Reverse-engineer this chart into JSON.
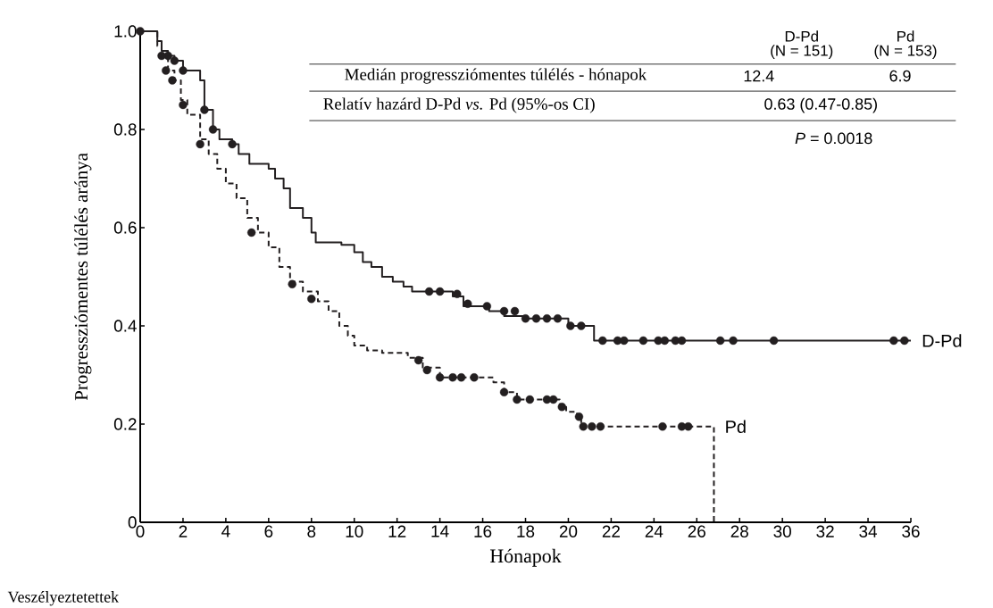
{
  "chart_data": {
    "type": "step",
    "xlabel": "Hónapok",
    "ylabel": "Progressziómentes túlélés aránya",
    "xlim": [
      0,
      36
    ],
    "xticks": [
      0,
      2,
      4,
      6,
      8,
      10,
      12,
      14,
      16,
      18,
      20,
      22,
      24,
      26,
      28,
      30,
      32,
      34,
      36
    ],
    "ylim": [
      0,
      1
    ],
    "yticks": [
      0,
      0.2,
      0.4,
      0.6,
      0.8,
      {
        "value": 1,
        "label": "1.0"
      }
    ],
    "grid": false,
    "series": [
      {
        "name": "D-Pd",
        "color": "#231f20",
        "line_style": "solid",
        "x": [
          0,
          0.8,
          1.0,
          1.3,
          1.6,
          2.0,
          2.8,
          3.0,
          3.4,
          3.7,
          4.3,
          4.6,
          5.1,
          6.0,
          6.3,
          6.7,
          7.0,
          7.6,
          8.0,
          8.2,
          9.4,
          10.0,
          10.4,
          10.8,
          11.3,
          11.8,
          12.3,
          12.7,
          14.6,
          15.1,
          16.3,
          17.0,
          18.0,
          20.0,
          21.2,
          36
        ],
        "values": [
          1.0,
          0.98,
          0.96,
          0.95,
          0.94,
          0.92,
          0.9,
          0.84,
          0.8,
          0.78,
          0.77,
          0.75,
          0.73,
          0.72,
          0.7,
          0.68,
          0.64,
          0.62,
          0.59,
          0.57,
          0.565,
          0.55,
          0.53,
          0.52,
          0.5,
          0.49,
          0.48,
          0.47,
          0.46,
          0.44,
          0.43,
          0.42,
          0.415,
          0.4,
          0.37,
          0.37
        ]
      },
      {
        "name": "Pd",
        "color": "#231f20",
        "line_style": "dashed",
        "x": [
          0,
          0.8,
          1.0,
          1.3,
          1.6,
          1.9,
          2.2,
          2.8,
          3.2,
          3.6,
          4.0,
          4.5,
          5.0,
          5.5,
          6.0,
          6.5,
          7.0,
          7.6,
          8.3,
          8.8,
          9.3,
          9.7,
          10.0,
          10.6,
          11.3,
          12.5,
          13.2,
          14.0,
          16.5,
          17.0,
          17.6,
          19.6,
          19.9,
          20.4,
          20.6,
          26.8
        ],
        "values": [
          1.0,
          0.97,
          0.95,
          0.92,
          0.9,
          0.86,
          0.83,
          0.78,
          0.75,
          0.72,
          0.69,
          0.66,
          0.62,
          0.59,
          0.56,
          0.52,
          0.49,
          0.47,
          0.45,
          0.43,
          0.4,
          0.38,
          0.36,
          0.35,
          0.345,
          0.335,
          0.315,
          0.295,
          0.285,
          0.265,
          0.25,
          0.235,
          0.225,
          0.215,
          0.195,
          0.0
        ]
      },
      {
        "type": "scatter",
        "marker": "circle",
        "color": "#231f20",
        "x": [
          0,
          1.3,
          1.6,
          2.0,
          3.0,
          3.4,
          4.3,
          13.5,
          14.0,
          14.8,
          15.3,
          16.2,
          17.0,
          17.5,
          18.0,
          18.5,
          19.0,
          19.5,
          20.1,
          20.6,
          21.6,
          22.3,
          22.6,
          23.5,
          24.2,
          24.5,
          25.0,
          25.3,
          27.1,
          27.7,
          29.6,
          35.2,
          35.7
        ],
        "values": [
          1.0,
          0.95,
          0.94,
          0.92,
          0.84,
          0.8,
          0.77,
          0.47,
          0.47,
          0.465,
          0.445,
          0.44,
          0.43,
          0.43,
          0.415,
          0.415,
          0.415,
          0.415,
          0.4,
          0.4,
          0.37,
          0.37,
          0.37,
          0.37,
          0.37,
          0.37,
          0.37,
          0.37,
          0.37,
          0.37,
          0.37,
          0.37,
          0.37
        ]
      },
      {
        "type": "scatter",
        "marker": "circle",
        "color": "#231f20",
        "x": [
          1.0,
          1.2,
          1.5,
          2.0,
          2.8,
          5.2,
          7.1,
          8.0,
          13.0,
          13.4,
          14.0,
          14.6,
          15.0,
          15.6,
          17.0,
          17.6,
          18.2,
          19.0,
          19.3,
          19.7,
          20.5,
          20.7,
          21.1,
          21.5,
          24.4,
          25.3,
          25.6
        ],
        "values": [
          0.95,
          0.92,
          0.9,
          0.85,
          0.77,
          0.59,
          0.485,
          0.455,
          0.33,
          0.31,
          0.295,
          0.295,
          0.295,
          0.295,
          0.265,
          0.25,
          0.25,
          0.25,
          0.25,
          0.235,
          0.215,
          0.195,
          0.195,
          0.195,
          0.195,
          0.195,
          0.195
        ]
      }
    ],
    "annotations": [
      "D-Pd",
      "(N = 151)",
      "Pd",
      "(N = 153)",
      "Medián progressziómentes túlélés - hónapok",
      "12.4",
      "6.9",
      "Relatív hazárd D-Pd *vs.* Pd (95%-os CI)",
      "0.63 (0.47-0.85)",
      "*P* = 0.0018",
      "Veszélyeztetettek"
    ]
  }
}
